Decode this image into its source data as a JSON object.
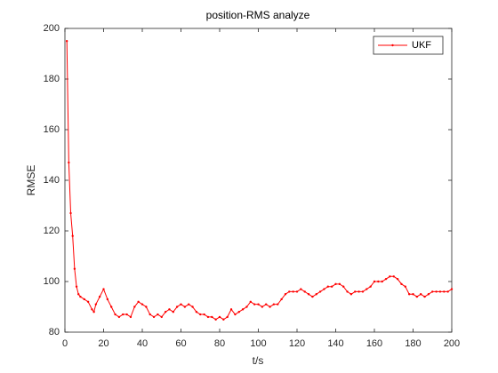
{
  "chart_data": {
    "type": "line",
    "title": "position-RMS analyze",
    "xlabel": "t/s",
    "ylabel": "RMSE",
    "x": [
      1,
      2,
      3,
      4,
      5,
      6,
      7,
      8,
      10,
      12,
      14,
      15,
      16,
      18,
      20,
      22,
      24,
      26,
      28,
      30,
      32,
      34,
      36,
      38,
      40,
      42,
      44,
      46,
      48,
      50,
      52,
      54,
      56,
      58,
      60,
      62,
      64,
      66,
      68,
      70,
      72,
      74,
      76,
      78,
      80,
      82,
      84,
      86,
      88,
      90,
      92,
      94,
      96,
      98,
      100,
      102,
      104,
      106,
      108,
      110,
      112,
      114,
      116,
      118,
      120,
      122,
      124,
      126,
      128,
      130,
      132,
      134,
      136,
      138,
      140,
      142,
      144,
      146,
      148,
      150,
      152,
      154,
      156,
      158,
      160,
      162,
      164,
      166,
      168,
      170,
      172,
      174,
      176,
      178,
      180,
      182,
      184,
      186,
      188,
      190,
      192,
      194,
      196,
      198,
      200
    ],
    "series": [
      {
        "name": "UKF",
        "color": "#ff0000",
        "values": [
          195,
          147,
          127,
          118,
          105,
          98,
          95,
          94,
          93,
          92,
          89,
          88,
          91,
          94,
          97,
          93,
          90,
          87,
          86,
          87,
          87,
          86,
          90,
          92,
          91,
          90,
          87,
          86,
          87,
          86,
          88,
          89,
          88,
          90,
          91,
          90,
          91,
          90,
          88,
          87,
          87,
          86,
          86,
          85,
          86,
          85,
          86,
          89,
          87,
          88,
          89,
          90,
          92,
          91,
          91,
          90,
          91,
          90,
          91,
          91,
          93,
          95,
          96,
          96,
          96,
          97,
          96,
          95,
          94,
          95,
          96,
          97,
          98,
          98,
          99,
          99,
          98,
          96,
          95,
          96,
          96,
          96,
          97,
          98,
          100,
          100,
          100,
          101,
          102,
          102,
          101,
          99,
          98,
          95,
          95,
          94,
          95,
          94,
          95,
          96,
          96,
          96,
          96,
          96,
          97
        ]
      }
    ],
    "xlim": [
      0,
      200
    ],
    "ylim": [
      80,
      200
    ],
    "xticks": [
      0,
      20,
      40,
      60,
      80,
      100,
      120,
      140,
      160,
      180,
      200
    ],
    "yticks": [
      80,
      100,
      120,
      140,
      160,
      180,
      200
    ],
    "legend": "northeast"
  }
}
